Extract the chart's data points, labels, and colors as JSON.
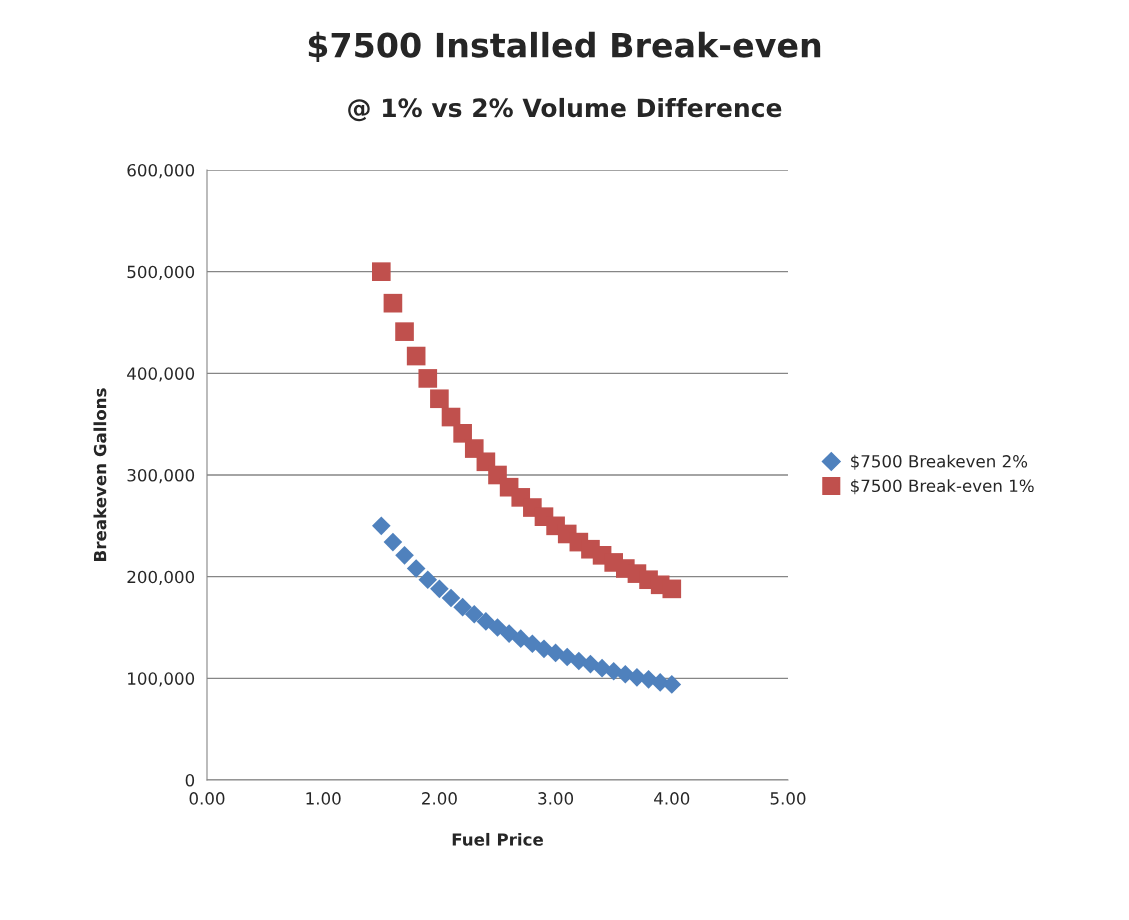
{
  "chart_data": {
    "type": "scatter",
    "title": "$7500 Installed Break-even",
    "subtitle": "@ 1% vs 2% Volume Difference",
    "xlabel": "Fuel Price",
    "ylabel": "Breakeven Gallons",
    "x": [
      1.5,
      1.6,
      1.7,
      1.8,
      1.9,
      2.0,
      2.1,
      2.2,
      2.3,
      2.4,
      2.5,
      2.6,
      2.7,
      2.8,
      2.9,
      3.0,
      3.1,
      3.2,
      3.3,
      3.4,
      3.5,
      3.6,
      3.7,
      3.8,
      3.9,
      4.0
    ],
    "series": [
      {
        "name": "$7500 Breakeven 2%",
        "color": "#4f81bd",
        "marker": "diamond",
        "values": [
          250000,
          234000,
          221000,
          208000,
          197000,
          188000,
          179000,
          170000,
          163000,
          156000,
          150000,
          144000,
          139000,
          134000,
          129000,
          125000,
          121000,
          117000,
          114000,
          110000,
          107000,
          104000,
          101000,
          99000,
          96000,
          94000
        ]
      },
      {
        "name": "$7500 Break-even 1%",
        "color": "#c0504d",
        "marker": "square",
        "values": [
          500000,
          469000,
          441000,
          417000,
          395000,
          375000,
          357000,
          341000,
          326000,
          313000,
          300000,
          288000,
          278000,
          268000,
          259000,
          250000,
          242000,
          234000,
          227000,
          221000,
          214000,
          208000,
          203000,
          197000,
          192000,
          188000
        ]
      }
    ],
    "xlim": [
      0,
      5
    ],
    "xticks": [
      {
        "value": 0,
        "label": "0.00"
      },
      {
        "value": 1,
        "label": "1.00"
      },
      {
        "value": 2,
        "label": "2.00"
      },
      {
        "value": 3,
        "label": "3.00"
      },
      {
        "value": 4,
        "label": "4.00"
      },
      {
        "value": 5,
        "label": "5.00"
      }
    ],
    "ylim": [
      0,
      600000
    ],
    "yticks": [
      0,
      {
        "value": 100000,
        "label": "100,000"
      },
      {
        "value": 200000,
        "label": "200,000"
      },
      {
        "value": 300000,
        "label": "300,000"
      },
      {
        "value": 400000,
        "label": "400,000"
      },
      {
        "value": 500000,
        "label": "500,000"
      },
      {
        "value": 600000,
        "label": "600,000"
      }
    ],
    "grid": "y",
    "legend": "right"
  }
}
